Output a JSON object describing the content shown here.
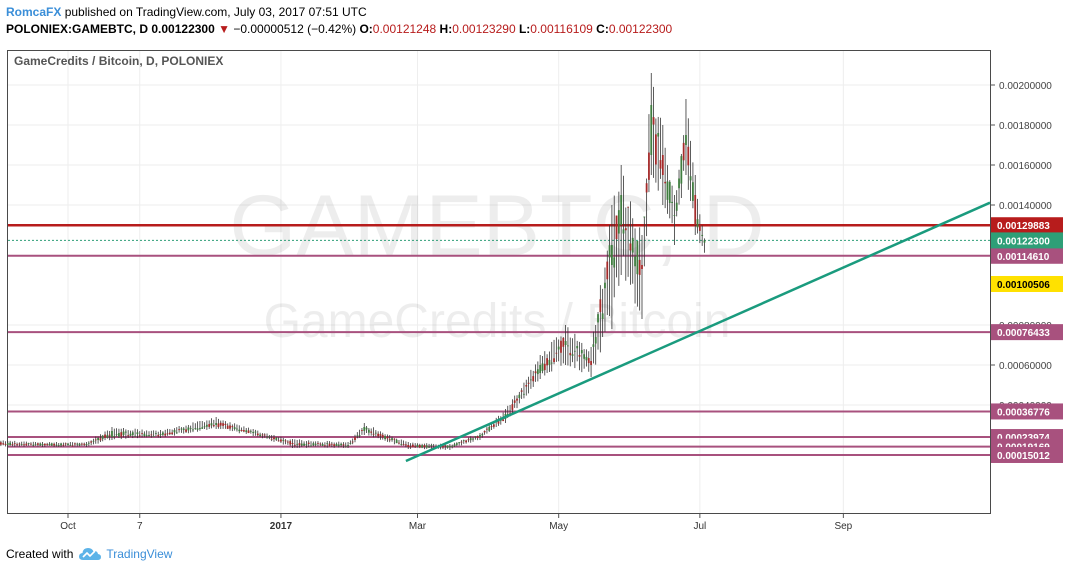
{
  "header": {
    "user": "RomcaFX",
    "published": " published on TradingView.com, July 03, 2017 07:51 UTC",
    "symbol": "POLONIEX:GAMEBTC, D",
    "price": "0.00122300",
    "change_arrow": "▼",
    "change": "−0.00000512 (−0.42%)",
    "o_label": "O:",
    "o": "0.00121248",
    "h_label": "H:",
    "h": "0.00123290",
    "l_label": "L:",
    "l": "0.00116109",
    "c_label": "C:",
    "c": "0.00122300"
  },
  "legend_title": "GameCredits / Bitcoin, D, POLONIEX",
  "watermark": {
    "line1": "GAMEBTC, D",
    "line2": "GameCredits / Bitcoin"
  },
  "footer": {
    "created_with": "Created with",
    "brand": "TradingView"
  },
  "colors": {
    "candle_up": "#3f7d3f",
    "candle_down": "#a52a2a",
    "resistance": "#b71c1c",
    "level": "#a8517e",
    "trendline": "#1a9b7e",
    "current_price_label": "#2e9f77",
    "highlight_label": "#ffe100"
  },
  "chart_data": {
    "type": "candlestick",
    "instrument": "POLONIEX:GAMEBTC",
    "interval": "D",
    "x_tick_labels": [
      "Oct",
      "7",
      "2017",
      "Mar",
      "May",
      "Jul",
      "Sep"
    ],
    "y_tick_labels": [
      "0.00040000",
      "0.00060000",
      "0.00080000",
      "0.00140000",
      "0.00160000",
      "0.00180000",
      "0.00200000"
    ],
    "ylim": [
      0.0001,
      0.00215
    ],
    "last_close": 0.001223,
    "horizontal_levels": [
      {
        "value": 0.00129883,
        "label": "0.00129883",
        "style": "resistance"
      },
      {
        "value": 0.0011461,
        "label": "0.00114610",
        "style": "level"
      },
      {
        "value": 0.00076433,
        "label": "0.00076433",
        "style": "level"
      },
      {
        "value": 0.00036776,
        "label": "0.00036776",
        "style": "level"
      },
      {
        "value": 0.00023974,
        "label": "0.00023974",
        "style": "level"
      },
      {
        "value": 0.00019169,
        "label": "0.00019169",
        "style": "level"
      },
      {
        "value": 0.00015012,
        "label": "0.00015012",
        "style": "level"
      }
    ],
    "price_labels": [
      {
        "value": 0.001223,
        "label": "0.00122300",
        "style": "current"
      },
      {
        "value": 0.00100506,
        "label": "0.00100506",
        "style": "highlight"
      }
    ],
    "trendline": {
      "from": {
        "date": "2017-02-24",
        "price": 0.00012
      },
      "through": {
        "date": "2017-07-01",
        "price": 0.00077
      }
    },
    "ohlc_key_points": [
      {
        "date": "2016-09-01",
        "o": 0.000205,
        "h": 0.000225,
        "l": 0.00019,
        "c": 0.00021
      },
      {
        "date": "2016-09-20",
        "o": 0.0002,
        "h": 0.000215,
        "l": 0.00019,
        "c": 0.000205
      },
      {
        "date": "2016-10-09",
        "o": 0.0002,
        "h": 0.000215,
        "l": 0.00019,
        "c": 0.000205
      },
      {
        "date": "2016-10-20",
        "o": 0.00024,
        "h": 0.00029,
        "l": 0.000225,
        "c": 0.00027
      },
      {
        "date": "2016-11-10",
        "o": 0.00025,
        "h": 0.000275,
        "l": 0.000235,
        "c": 0.000255
      },
      {
        "date": "2016-12-04",
        "o": 0.0003,
        "h": 0.00034,
        "l": 0.00028,
        "c": 0.00031
      },
      {
        "date": "2016-12-20",
        "o": 0.00026,
        "h": 0.00028,
        "l": 0.000245,
        "c": 0.000265
      },
      {
        "date": "2017-01-06",
        "o": 0.00021,
        "h": 0.00023,
        "l": 0.000185,
        "c": 0.000205
      },
      {
        "date": "2017-01-30",
        "o": 0.0002,
        "h": 0.000215,
        "l": 0.000185,
        "c": 0.0002
      },
      {
        "date": "2017-02-06",
        "o": 0.00027,
        "h": 0.00031,
        "l": 0.00025,
        "c": 0.00029
      },
      {
        "date": "2017-02-25",
        "o": 0.0002,
        "h": 0.000215,
        "l": 0.00018,
        "c": 0.00019
      },
      {
        "date": "2017-03-15",
        "o": 0.00019,
        "h": 0.000205,
        "l": 0.000175,
        "c": 0.000195
      },
      {
        "date": "2017-03-28",
        "o": 0.00024,
        "h": 0.00026,
        "l": 0.000225,
        "c": 0.00025
      },
      {
        "date": "2017-04-08",
        "o": 0.00033,
        "h": 0.00038,
        "l": 0.00031,
        "c": 0.000355
      },
      {
        "date": "2017-04-23",
        "o": 0.00056,
        "h": 0.00065,
        "l": 0.00053,
        "c": 0.0006
      },
      {
        "date": "2017-05-04",
        "o": 0.0007,
        "h": 0.0008,
        "l": 0.0006,
        "c": 0.00072
      },
      {
        "date": "2017-05-15",
        "o": 0.00062,
        "h": 0.00069,
        "l": 0.00054,
        "c": 0.0006
      },
      {
        "date": "2017-05-24",
        "o": 0.0011,
        "h": 0.0014,
        "l": 0.00078,
        "c": 0.0012
      },
      {
        "date": "2017-05-28",
        "o": 0.0013,
        "h": 0.0016,
        "l": 0.00105,
        "c": 0.00145
      },
      {
        "date": "2017-06-06",
        "o": 0.0011,
        "h": 0.00125,
        "l": 0.00083,
        "c": 0.00108
      },
      {
        "date": "2017-06-10",
        "o": 0.00165,
        "h": 0.00206,
        "l": 0.00155,
        "c": 0.0019
      },
      {
        "date": "2017-06-15",
        "o": 0.00165,
        "h": 0.0018,
        "l": 0.0014,
        "c": 0.00155
      },
      {
        "date": "2017-06-20",
        "o": 0.00135,
        "h": 0.00145,
        "l": 0.0012,
        "c": 0.00135
      },
      {
        "date": "2017-06-25",
        "o": 0.0017,
        "h": 0.00193,
        "l": 0.00155,
        "c": 0.00175
      },
      {
        "date": "2017-06-29",
        "o": 0.00145,
        "h": 0.00155,
        "l": 0.00125,
        "c": 0.0013
      },
      {
        "date": "2017-07-03",
        "o": 0.001212,
        "h": 0.001233,
        "l": 0.001161,
        "c": 0.001223
      }
    ]
  }
}
